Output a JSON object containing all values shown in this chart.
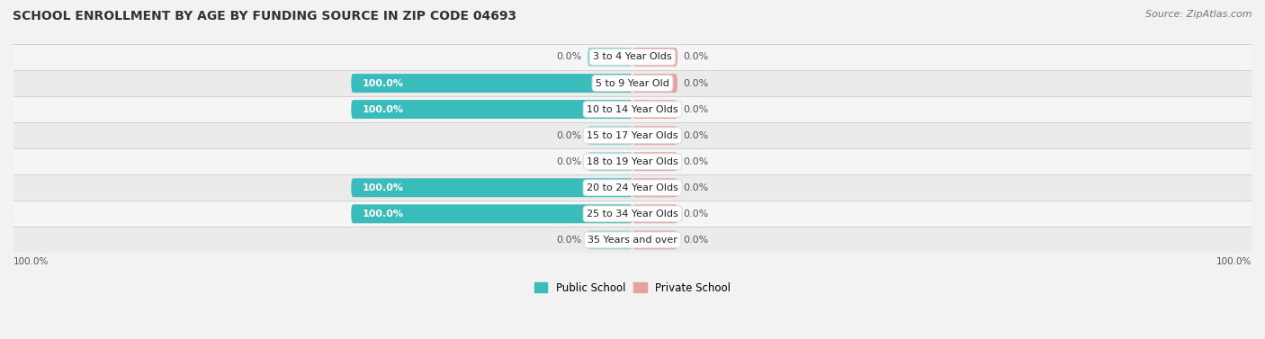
{
  "title": "SCHOOL ENROLLMENT BY AGE BY FUNDING SOURCE IN ZIP CODE 04693",
  "source": "Source: ZipAtlas.com",
  "categories": [
    "3 to 4 Year Olds",
    "5 to 9 Year Old",
    "10 to 14 Year Olds",
    "15 to 17 Year Olds",
    "18 to 19 Year Olds",
    "20 to 24 Year Olds",
    "25 to 34 Year Olds",
    "35 Years and over"
  ],
  "public_values": [
    0.0,
    100.0,
    100.0,
    0.0,
    0.0,
    100.0,
    100.0,
    0.0
  ],
  "private_values": [
    0.0,
    0.0,
    0.0,
    0.0,
    0.0,
    0.0,
    0.0,
    0.0
  ],
  "public_color": "#3BBCBC",
  "public_stub_color": "#90D4D4",
  "private_color": "#E8A0A0",
  "private_stub_color": "#E8A0A0",
  "row_bg_color_light": "#F5F5F5",
  "row_bg_color_dark": "#EBEBEB",
  "label_bg_color": "#FFFFFF",
  "axis_label_left": "100.0%",
  "axis_label_right": "100.0%",
  "public_label": "Public School",
  "private_label": "Private School",
  "title_fontsize": 10,
  "source_fontsize": 8,
  "bar_label_fontsize": 8,
  "cat_label_fontsize": 8,
  "figsize": [
    14.06,
    3.77
  ],
  "xlim": [
    -110,
    110
  ],
  "stub_size": 8,
  "full_size": 50
}
